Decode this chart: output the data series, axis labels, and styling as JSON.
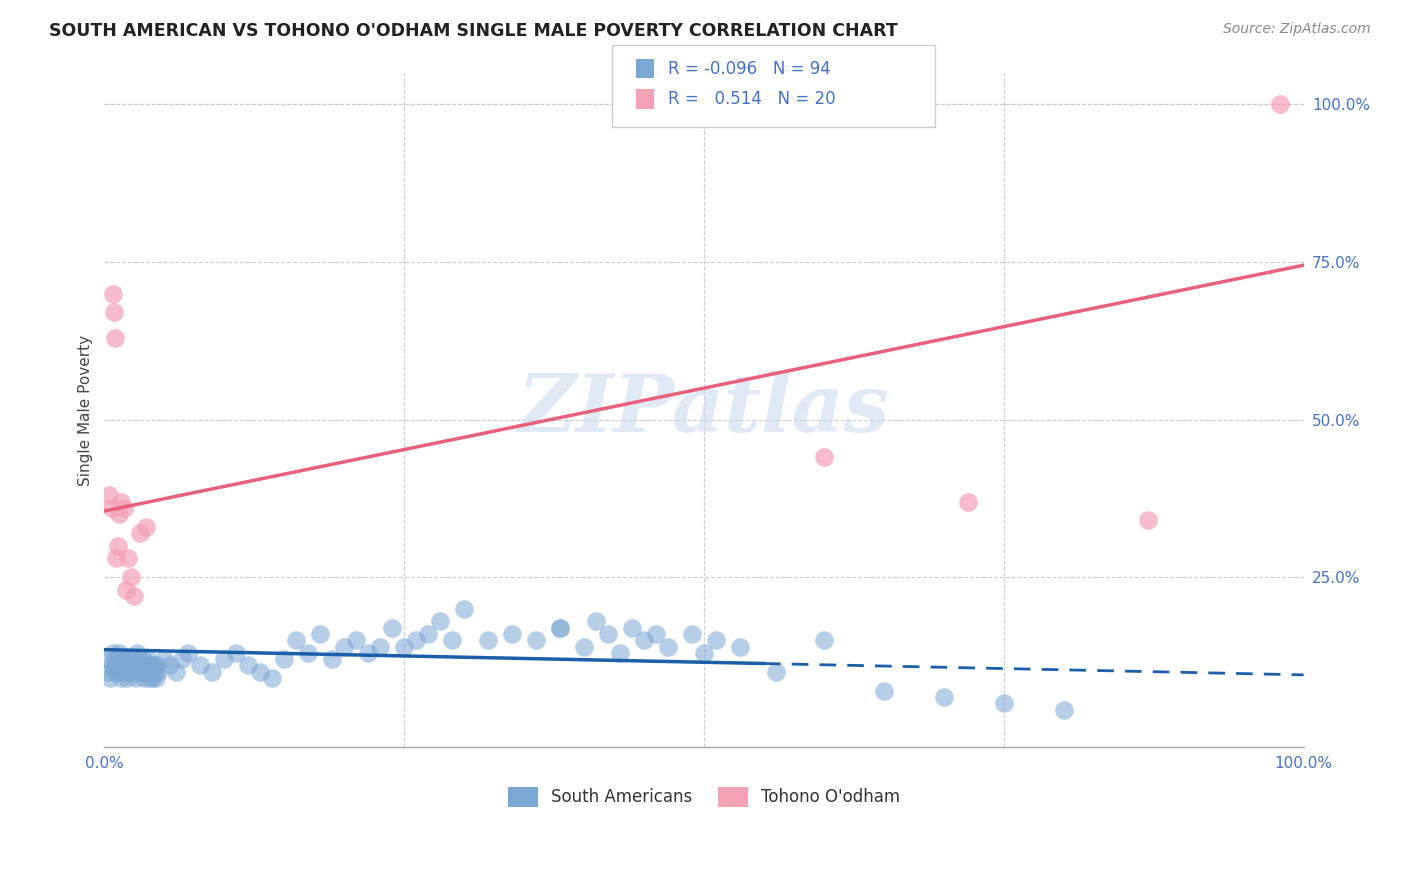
{
  "title": "SOUTH AMERICAN VS TOHONO O'ODHAM SINGLE MALE POVERTY CORRELATION CHART",
  "source": "Source: ZipAtlas.com",
  "ylabel": "Single Male Poverty",
  "xlim": [
    0.0,
    1.0
  ],
  "ylim": [
    -0.02,
    1.05
  ],
  "xticks": [
    0.0,
    0.25,
    0.5,
    0.75,
    1.0
  ],
  "xticklabels": [
    "0.0%",
    "",
    "",
    "",
    "100.0%"
  ],
  "yticks": [
    0.0,
    0.25,
    0.5,
    0.75,
    1.0
  ],
  "yticklabels": [
    "",
    "25.0%",
    "50.0%",
    "75.0%",
    "100.0%"
  ],
  "blue_color": "#7ba7d4",
  "pink_color": "#f4a0b5",
  "blue_line_color": "#1a5fa8",
  "pink_line_color": "#e8607a",
  "watermark_text": "ZIPatlas",
  "watermark_color": "#c8d8f0",
  "legend_R_blue": "-0.096",
  "legend_N_blue": "94",
  "legend_R_pink": "0.514",
  "legend_N_pink": "20",
  "blue_scatter_x": [
    0.003,
    0.004,
    0.005,
    0.006,
    0.007,
    0.008,
    0.009,
    0.01,
    0.011,
    0.012,
    0.013,
    0.014,
    0.015,
    0.016,
    0.017,
    0.018,
    0.019,
    0.02,
    0.021,
    0.022,
    0.023,
    0.024,
    0.025,
    0.026,
    0.027,
    0.028,
    0.029,
    0.03,
    0.031,
    0.032,
    0.033,
    0.034,
    0.035,
    0.036,
    0.037,
    0.038,
    0.039,
    0.04,
    0.041,
    0.042,
    0.043,
    0.044,
    0.045,
    0.05,
    0.055,
    0.06,
    0.065,
    0.07,
    0.08,
    0.09,
    0.1,
    0.11,
    0.12,
    0.13,
    0.14,
    0.15,
    0.16,
    0.17,
    0.18,
    0.19,
    0.2,
    0.21,
    0.22,
    0.23,
    0.24,
    0.25,
    0.26,
    0.27,
    0.28,
    0.29,
    0.3,
    0.32,
    0.34,
    0.36,
    0.38,
    0.4,
    0.42,
    0.44,
    0.38,
    0.41,
    0.43,
    0.45,
    0.46,
    0.47,
    0.49,
    0.5,
    0.51,
    0.53,
    0.56,
    0.6,
    0.65,
    0.7,
    0.75,
    0.8
  ],
  "blue_scatter_y": [
    0.1,
    0.12,
    0.09,
    0.11,
    0.13,
    0.1,
    0.12,
    0.11,
    0.1,
    0.13,
    0.12,
    0.09,
    0.11,
    0.1,
    0.12,
    0.11,
    0.09,
    0.1,
    0.12,
    0.11,
    0.1,
    0.12,
    0.11,
    0.09,
    0.13,
    0.1,
    0.12,
    0.11,
    0.1,
    0.12,
    0.09,
    0.11,
    0.1,
    0.12,
    0.09,
    0.11,
    0.1,
    0.09,
    0.11,
    0.1,
    0.09,
    0.11,
    0.1,
    0.12,
    0.11,
    0.1,
    0.12,
    0.13,
    0.11,
    0.1,
    0.12,
    0.13,
    0.11,
    0.1,
    0.09,
    0.12,
    0.15,
    0.13,
    0.16,
    0.12,
    0.14,
    0.15,
    0.13,
    0.14,
    0.17,
    0.14,
    0.15,
    0.16,
    0.18,
    0.15,
    0.2,
    0.15,
    0.16,
    0.15,
    0.17,
    0.14,
    0.16,
    0.17,
    0.17,
    0.18,
    0.13,
    0.15,
    0.16,
    0.14,
    0.16,
    0.13,
    0.15,
    0.14,
    0.1,
    0.15,
    0.07,
    0.06,
    0.05,
    0.04
  ],
  "pink_scatter_x": [
    0.004,
    0.006,
    0.007,
    0.008,
    0.009,
    0.01,
    0.011,
    0.012,
    0.014,
    0.016,
    0.018,
    0.02,
    0.022,
    0.025,
    0.03,
    0.035,
    0.6,
    0.72,
    0.87,
    0.98
  ],
  "pink_scatter_y": [
    0.38,
    0.36,
    0.7,
    0.67,
    0.63,
    0.28,
    0.3,
    0.35,
    0.37,
    0.36,
    0.23,
    0.28,
    0.25,
    0.22,
    0.32,
    0.33,
    0.44,
    0.37,
    0.34,
    1.0
  ],
  "blue_trend_x": [
    0.0,
    1.0
  ],
  "blue_trend_y": [
    0.135,
    0.095
  ],
  "pink_trend_x": [
    0.0,
    1.0
  ],
  "pink_trend_y": [
    0.355,
    0.745
  ],
  "blue_trend_dashed_start": 0.55
}
